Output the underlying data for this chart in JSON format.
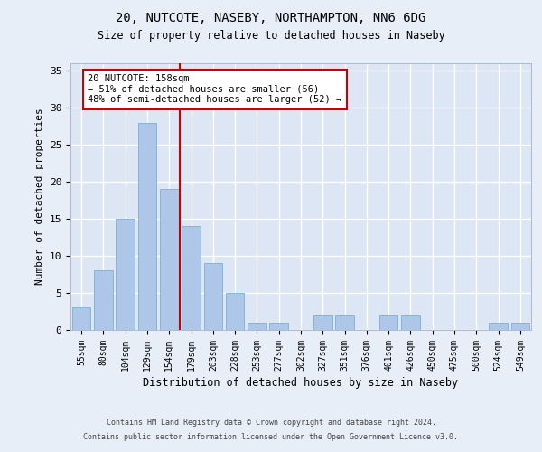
{
  "title1": "20, NUTCOTE, NASEBY, NORTHAMPTON, NN6 6DG",
  "title2": "Size of property relative to detached houses in Naseby",
  "xlabel": "Distribution of detached houses by size in Naseby",
  "ylabel": "Number of detached properties",
  "categories": [
    "55sqm",
    "80sqm",
    "104sqm",
    "129sqm",
    "154sqm",
    "179sqm",
    "203sqm",
    "228sqm",
    "253sqm",
    "277sqm",
    "302sqm",
    "327sqm",
    "351sqm",
    "376sqm",
    "401sqm",
    "426sqm",
    "450sqm",
    "475sqm",
    "500sqm",
    "524sqm",
    "549sqm"
  ],
  "values": [
    3,
    8,
    15,
    28,
    19,
    14,
    9,
    5,
    1,
    1,
    0,
    2,
    2,
    0,
    2,
    2,
    0,
    0,
    0,
    1,
    1
  ],
  "bar_color": "#aec6e8",
  "bar_edge_color": "#7aafd4",
  "vline_color": "#cc0000",
  "annotation_text": "20 NUTCOTE: 158sqm\n← 51% of detached houses are smaller (56)\n48% of semi-detached houses are larger (52) →",
  "annotation_box_color": "#ffffff",
  "annotation_box_edge_color": "#cc0000",
  "ylim": [
    0,
    36
  ],
  "yticks": [
    0,
    5,
    10,
    15,
    20,
    25,
    30,
    35
  ],
  "footer1": "Contains HM Land Registry data © Crown copyright and database right 2024.",
  "footer2": "Contains public sector information licensed under the Open Government Licence v3.0.",
  "background_color": "#e8eef7",
  "plot_bg_color": "#dce6f5",
  "grid_color": "#ffffff",
  "title1_fontsize": 10,
  "title2_fontsize": 8.5,
  "bar_width": 0.85
}
